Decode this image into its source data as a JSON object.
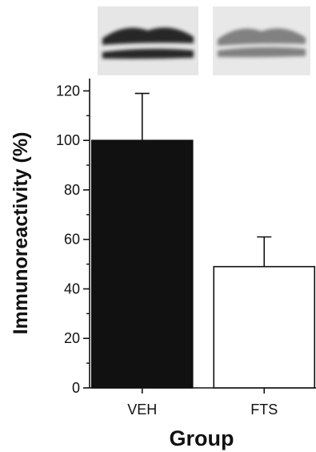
{
  "chart_data": {
    "type": "bar",
    "categories": [
      "VEH",
      "FTS"
    ],
    "values": [
      100,
      49
    ],
    "error_bars": [
      19,
      12
    ],
    "xlabel": "Group",
    "ylabel": "Immunoreactivity (%)",
    "ylim": [
      0,
      125
    ],
    "yticks": [
      0,
      20,
      40,
      60,
      80,
      100,
      120
    ],
    "bar_colors": [
      "#111111",
      "#ffffff"
    ],
    "bar_edge_color": "#111111",
    "grid": false,
    "inset": "western blot bands above bars",
    "blot_bands": [
      {
        "lane": "VEH",
        "bands": 2,
        "intensity": 0.95
      },
      {
        "lane": "FTS",
        "bands": 2,
        "intensity": 0.55
      }
    ]
  }
}
